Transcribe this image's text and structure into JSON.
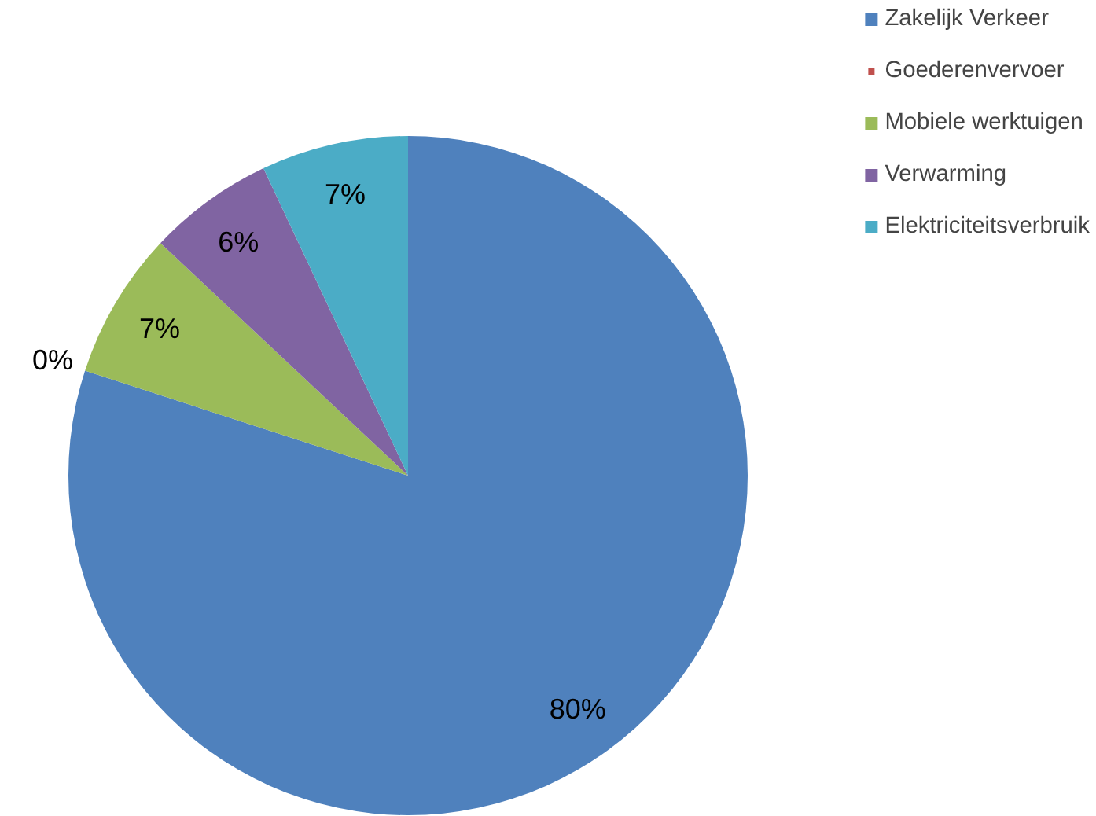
{
  "chart_data": {
    "type": "pie",
    "categories": [
      "Zakelijk Verkeer",
      "Goederenvervoer",
      "Mobiele werktuigen",
      "Verwarming",
      "Elektriciteitsverbruik"
    ],
    "values": [
      80,
      0,
      7,
      6,
      7
    ],
    "colors": [
      "#4f81bd",
      "#c0504d",
      "#9bbb59",
      "#8064a2",
      "#4bacc6"
    ],
    "value_labels": [
      "80%",
      "0%",
      "7%",
      "6%",
      "7%"
    ],
    "legend": "top right"
  }
}
